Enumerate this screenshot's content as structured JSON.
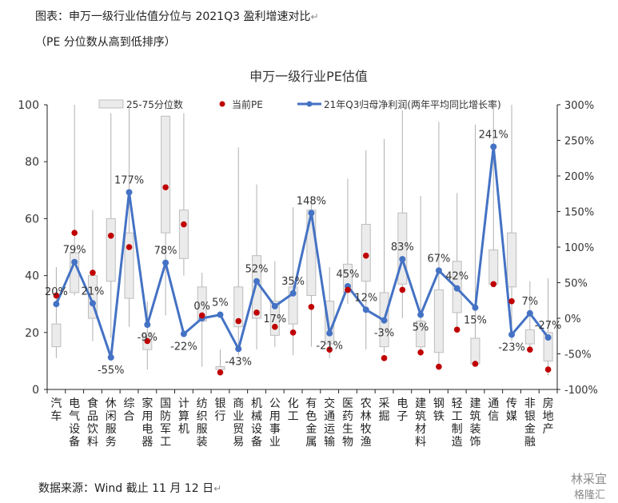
{
  "caption": {
    "title": "图表：申万一级行业估值分位与 2021Q3 盈利增速对比",
    "subtitle": "（PE 分位数从高到低排序）",
    "source": "数据来源：Wind 截止 11 月 12 日",
    "para_mark": "↵"
  },
  "watermark": {
    "line1": "林采宜",
    "line2": "格隆汇"
  },
  "chart_data": {
    "type": "box-scatter-line",
    "title": "申万一级行业PE估值",
    "legend": {
      "placement": "top",
      "items": [
        "25-75分位数",
        "当前PE",
        "21年Q3归母净利润(两年平均同比增长率)"
      ]
    },
    "y_left": {
      "range": [
        0,
        100
      ],
      "ticks": [
        0,
        20,
        40,
        60,
        80,
        100
      ]
    },
    "y_right": {
      "range": [
        -100,
        300
      ],
      "ticks": [
        "-100%",
        "-50%",
        "0%",
        "50%",
        "100%",
        "150%",
        "200%",
        "250%",
        "300%"
      ]
    },
    "categories": [
      "汽车",
      "电气设备",
      "食品饮料",
      "休闲服务",
      "综合",
      "家用电器",
      "国防军工",
      "计算机",
      "纺织服装",
      "银行",
      "商业贸易",
      "机械设备",
      "公用事业",
      "化工",
      "有色金属",
      "交通运输",
      "医药生物",
      "农林牧渔",
      "采掘",
      "电子",
      "建筑材料",
      "钢铁",
      "轻工制造",
      "建筑装饰",
      "通信",
      "传媒",
      "非银金融",
      "房地产"
    ],
    "whisker": [
      [
        11,
        43
      ],
      [
        33,
        100
      ],
      [
        17,
        63
      ],
      [
        18,
        97
      ],
      [
        22,
        100
      ],
      [
        7,
        31
      ],
      [
        26,
        96
      ],
      [
        40,
        97
      ],
      [
        8,
        41
      ],
      [
        5,
        14
      ],
      [
        12,
        85
      ],
      [
        14,
        72
      ],
      [
        15,
        45
      ],
      [
        12,
        64
      ],
      [
        15,
        68
      ],
      [
        11,
        43
      ],
      [
        30,
        74
      ],
      [
        14,
        84
      ],
      [
        13,
        88
      ],
      [
        25,
        98
      ],
      [
        13,
        68
      ],
      [
        9,
        94
      ],
      [
        20,
        69
      ],
      [
        10,
        93
      ],
      [
        40,
        100
      ],
      [
        17,
        100
      ],
      [
        13,
        38
      ],
      [
        5,
        39
      ]
    ],
    "box": [
      [
        15,
        23
      ],
      [
        34,
        48
      ],
      [
        25,
        40
      ],
      [
        38,
        60
      ],
      [
        32,
        55
      ],
      [
        14,
        20
      ],
      [
        55,
        96
      ],
      [
        46,
        63
      ],
      [
        24,
        36
      ],
      [
        7,
        8
      ],
      [
        22,
        36
      ],
      [
        25,
        47
      ],
      [
        19,
        31
      ],
      [
        23,
        36
      ],
      [
        33,
        63
      ],
      [
        16,
        31
      ],
      [
        34,
        44
      ],
      [
        38,
        58
      ],
      [
        15,
        34
      ],
      [
        37,
        62
      ],
      [
        15,
        24
      ],
      [
        13,
        35
      ],
      [
        27,
        45
      ],
      [
        9,
        18
      ],
      [
        37,
        49
      ],
      [
        36,
        55
      ],
      [
        16,
        21
      ],
      [
        10,
        20
      ]
    ],
    "current_pe": [
      33,
      55,
      41,
      54,
      50,
      17,
      71,
      58,
      26,
      6,
      24,
      27,
      22,
      20,
      29,
      14,
      35,
      47,
      11,
      35,
      13,
      8,
      21,
      9,
      37,
      31,
      14,
      7
    ],
    "growth_pct": [
      20,
      79,
      21,
      -55,
      177,
      -9,
      78,
      -22,
      0,
      5,
      -43,
      52,
      17,
      35,
      148,
      -21,
      45,
      12,
      -3,
      83,
      5,
      67,
      42,
      15,
      241,
      -23,
      7,
      -27
    ],
    "growth_labels": [
      "20%",
      "79%",
      "21%",
      "-55%",
      "177%",
      "-9%",
      "78%",
      "-22%",
      "0%",
      "5%",
      "-43%",
      "52%",
      "17%",
      "35%",
      "148%",
      "-21%",
      "45%",
      "12%",
      "-3%",
      "83%",
      "5%",
      "67%",
      "42%",
      "15%",
      "241%",
      "-23%",
      "7%",
      "-27%"
    ],
    "colors": {
      "box_fill": "#ebebeb",
      "box_stroke": "#bdbdbd",
      "whisker": "#b0b0b0",
      "marker": "#c00000",
      "line": "#4472c4",
      "axis": "#222222",
      "grid": "#d9d9d9"
    }
  }
}
